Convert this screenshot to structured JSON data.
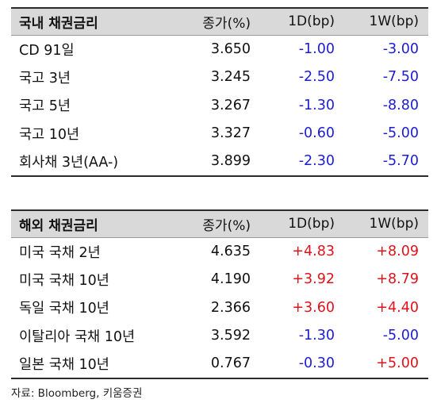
{
  "domestic": {
    "header": {
      "name": "국내 채권금리",
      "close": "종가(%)",
      "d1": "1D(bp)",
      "w1": "1W(bp)"
    },
    "rows": [
      {
        "name": "CD 91일",
        "close": "3.650",
        "d1": "-1.00",
        "w1": "-3.00"
      },
      {
        "name": "국고 3년",
        "close": "3.245",
        "d1": "-2.50",
        "w1": "-7.50"
      },
      {
        "name": "국고 5년",
        "close": "3.267",
        "d1": "-1.30",
        "w1": "-8.80"
      },
      {
        "name": "국고 10년",
        "close": "3.327",
        "d1": "-0.60",
        "w1": "-5.00"
      },
      {
        "name": "회사채 3년(AA-)",
        "close": "3.899",
        "d1": "-2.30",
        "w1": "-5.70"
      }
    ]
  },
  "foreign": {
    "header": {
      "name": "해외 채권금리",
      "close": "종가(%)",
      "d1": "1D(bp)",
      "w1": "1W(bp)"
    },
    "rows": [
      {
        "name": "미국 국채 2년",
        "close": "4.635",
        "d1": "+4.83",
        "w1": "+8.09"
      },
      {
        "name": "미국 국채 10년",
        "close": "4.190",
        "d1": "+3.92",
        "w1": "+8.79"
      },
      {
        "name": "독일 국채 10년",
        "close": "2.366",
        "d1": "+3.60",
        "w1": "+4.40"
      },
      {
        "name": "이탈리아 국채 10년",
        "close": "3.592",
        "d1": "-1.30",
        "w1": "-5.00"
      },
      {
        "name": "일본 국채 10년",
        "close": "0.767",
        "d1": "-0.30",
        "w1": "+5.00"
      }
    ]
  },
  "source": "자료: Bloomberg, 키움증권",
  "colors": {
    "negative": "#1c1cd4",
    "positive": "#e0121a",
    "header_bg": "#d9d9d9"
  }
}
